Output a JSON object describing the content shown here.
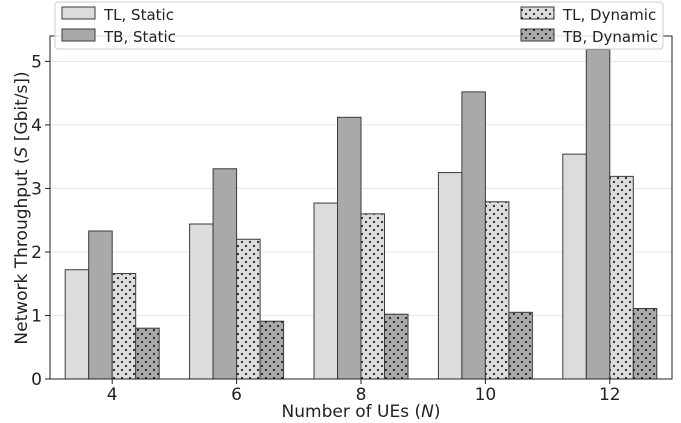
{
  "chart_data": {
    "type": "bar",
    "title": "",
    "xlabel": "Number of UEs (",
    "xlabel_var": "N",
    "xlabel_end": ")",
    "ylabel": "Network Throughput (",
    "ylabel_var": "S",
    "ylabel_end": " [Gbit/s])",
    "categories": [
      "4",
      "6",
      "8",
      "10",
      "12"
    ],
    "ylim": [
      0,
      5.4
    ],
    "yticks": [
      "0",
      "1",
      "2",
      "3",
      "4",
      "5"
    ],
    "grid": "y",
    "legend_position": "top",
    "series": [
      {
        "name": "TL, Static",
        "values": [
          1.72,
          2.44,
          2.77,
          3.25,
          3.54
        ],
        "color": "#dcdcdc",
        "pattern": "none"
      },
      {
        "name": "TB, Static",
        "values": [
          2.33,
          3.31,
          4.12,
          4.52,
          5.19
        ],
        "color": "#a9a9a9",
        "pattern": "none"
      },
      {
        "name": "TL, Dynamic",
        "values": [
          1.66,
          2.2,
          2.6,
          2.79,
          3.19
        ],
        "color": "#dcdcdc",
        "pattern": "dots"
      },
      {
        "name": "TB, Dynamic",
        "values": [
          0.8,
          0.91,
          1.02,
          1.05,
          1.11
        ],
        "color": "#a9a9a9",
        "pattern": "dots"
      }
    ]
  }
}
